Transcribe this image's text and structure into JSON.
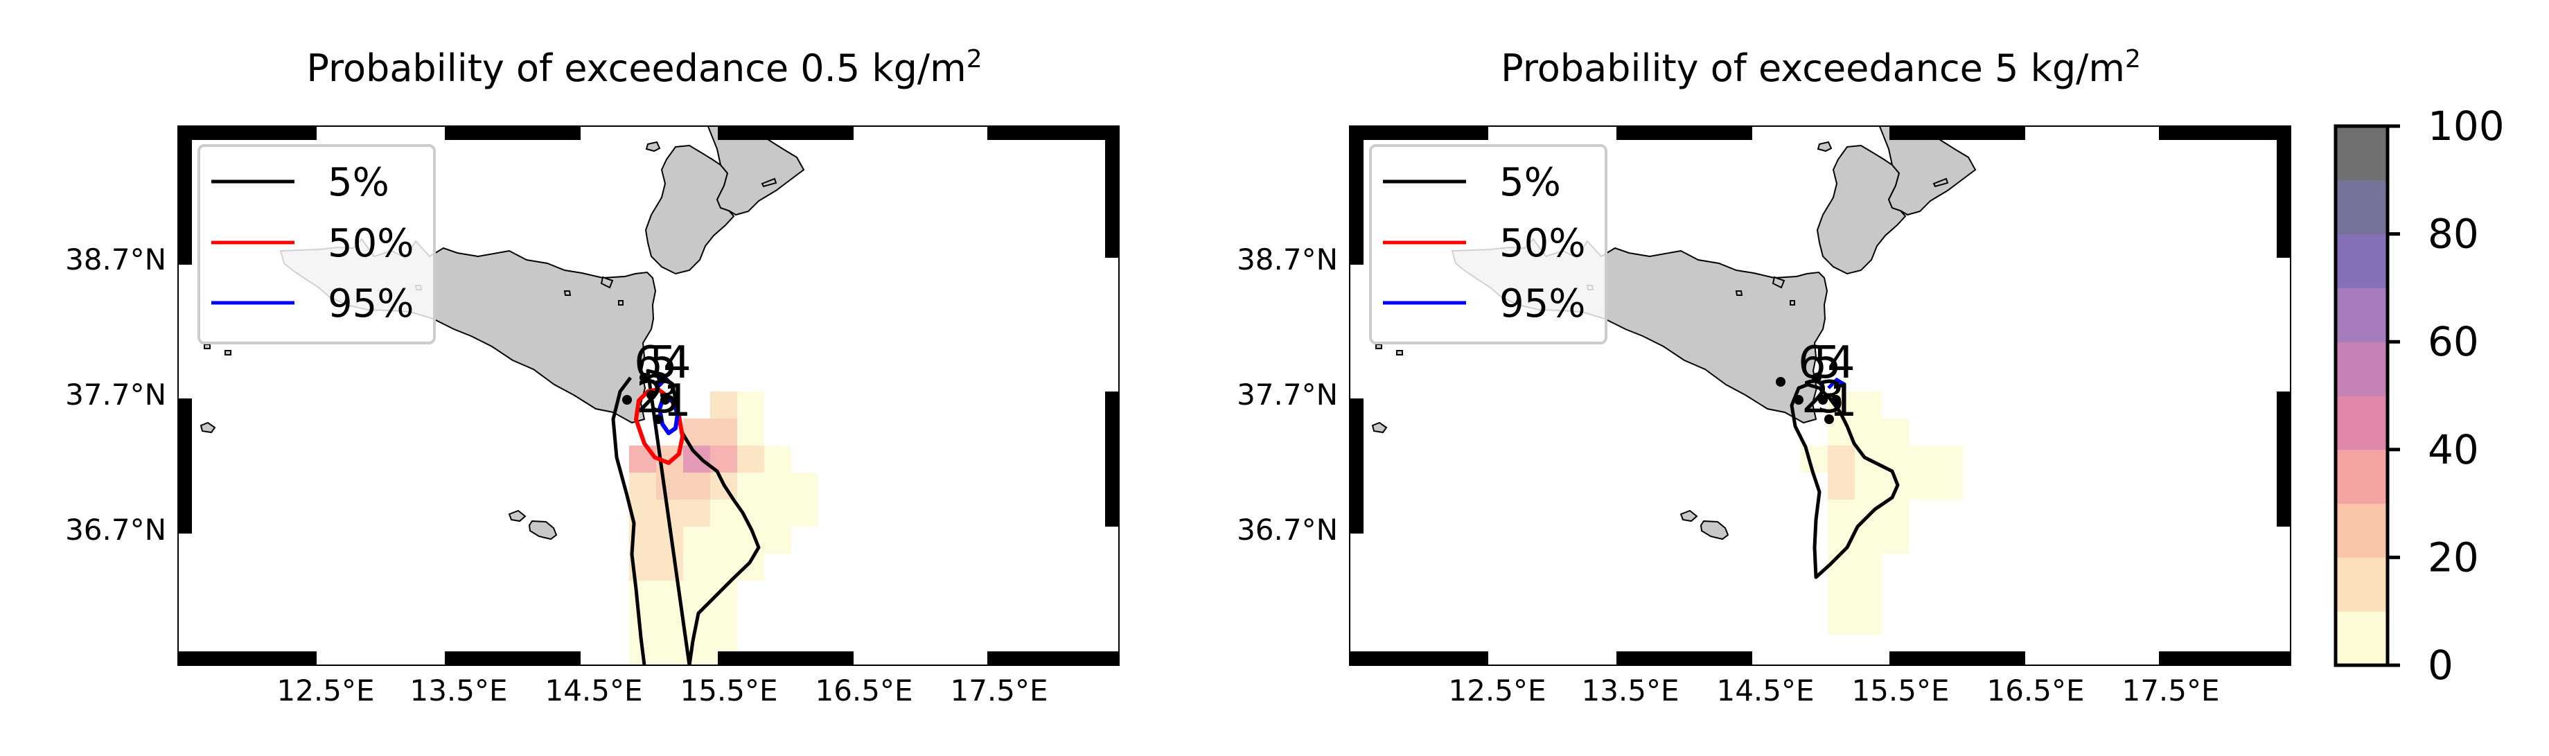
{
  "chart_data": [
    {
      "type": "map",
      "title": "Probability of exceedance 0.5 kg/m",
      "title_superscript": "2",
      "xlim": [
        11.5,
        18.5
      ],
      "ylim": [
        35.6,
        39.6
      ],
      "xticks": [
        "12.5°E",
        "13.5°E",
        "14.5°E",
        "15.5°E",
        "16.5°E",
        "17.5°E"
      ],
      "yticks": [
        "38.7°N",
        "37.7°N",
        "36.7°N"
      ],
      "legend": {
        "placement": "top-left",
        "entries": [
          "5%",
          "50%",
          "95%"
        ]
      },
      "vent_labels": [
        "6",
        "5",
        "4",
        "2",
        "3",
        "1"
      ]
    },
    {
      "type": "map",
      "title": "Probability of exceedance 5 kg/m",
      "title_superscript": "2",
      "xlim": [
        11.5,
        18.5
      ],
      "ylim": [
        35.6,
        39.6
      ],
      "xticks": [
        "12.5°E",
        "13.5°E",
        "14.5°E",
        "15.5°E",
        "16.5°E",
        "17.5°E"
      ],
      "yticks": [
        "38.7°N",
        "37.7°N",
        "36.7°N"
      ],
      "legend": {
        "placement": "top-left",
        "entries": [
          "5%",
          "50%",
          "95%"
        ]
      },
      "vent_labels": [
        "6",
        "5",
        "4",
        "2",
        "3",
        "1"
      ]
    }
  ],
  "colorbar": {
    "ticks": [
      "0",
      "20",
      "40",
      "60",
      "80",
      "100"
    ],
    "range": [
      0,
      100
    ],
    "levels": [
      "#fdfcd6",
      "#fbe0b9",
      "#f8c5a9",
      "#f3a3a1",
      "#e086a8",
      "#c583b5",
      "#a57bbb",
      "#8670b6",
      "#75739a",
      "#707070"
    ]
  },
  "colors": {
    "land": "#c8c8c8",
    "c5": "#000000",
    "c50": "#ff0000",
    "c95": "#0000ff"
  }
}
